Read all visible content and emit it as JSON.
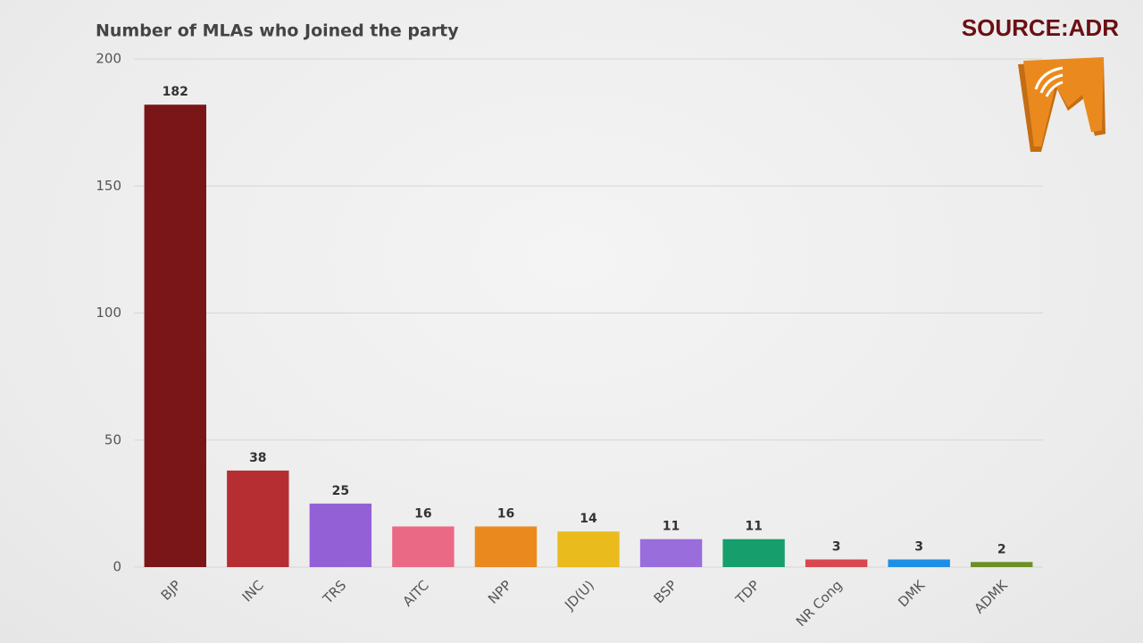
{
  "chart_data": {
    "type": "bar",
    "title": "Number of MLAs who Joined the party",
    "source": "SOURCE:ADR",
    "categories": [
      "BJP",
      "INC",
      "TRS",
      "AITC",
      "NPP",
      "JD(U)",
      "BSP",
      "TDP",
      "NR Cong",
      "DMK",
      "ADMK"
    ],
    "values": [
      182,
      38,
      25,
      16,
      16,
      14,
      11,
      11,
      3,
      3,
      2
    ],
    "colors": [
      "#7a1518",
      "#b72e32",
      "#9460d6",
      "#ea6a85",
      "#ea8a1e",
      "#eabb1d",
      "#9a6ddc",
      "#169e6c",
      "#d9474f",
      "#1e8fe6",
      "#6e8f23"
    ],
    "ylim": [
      0,
      200
    ],
    "yticks": [
      0,
      50,
      100,
      150,
      200
    ],
    "grid": true
  }
}
